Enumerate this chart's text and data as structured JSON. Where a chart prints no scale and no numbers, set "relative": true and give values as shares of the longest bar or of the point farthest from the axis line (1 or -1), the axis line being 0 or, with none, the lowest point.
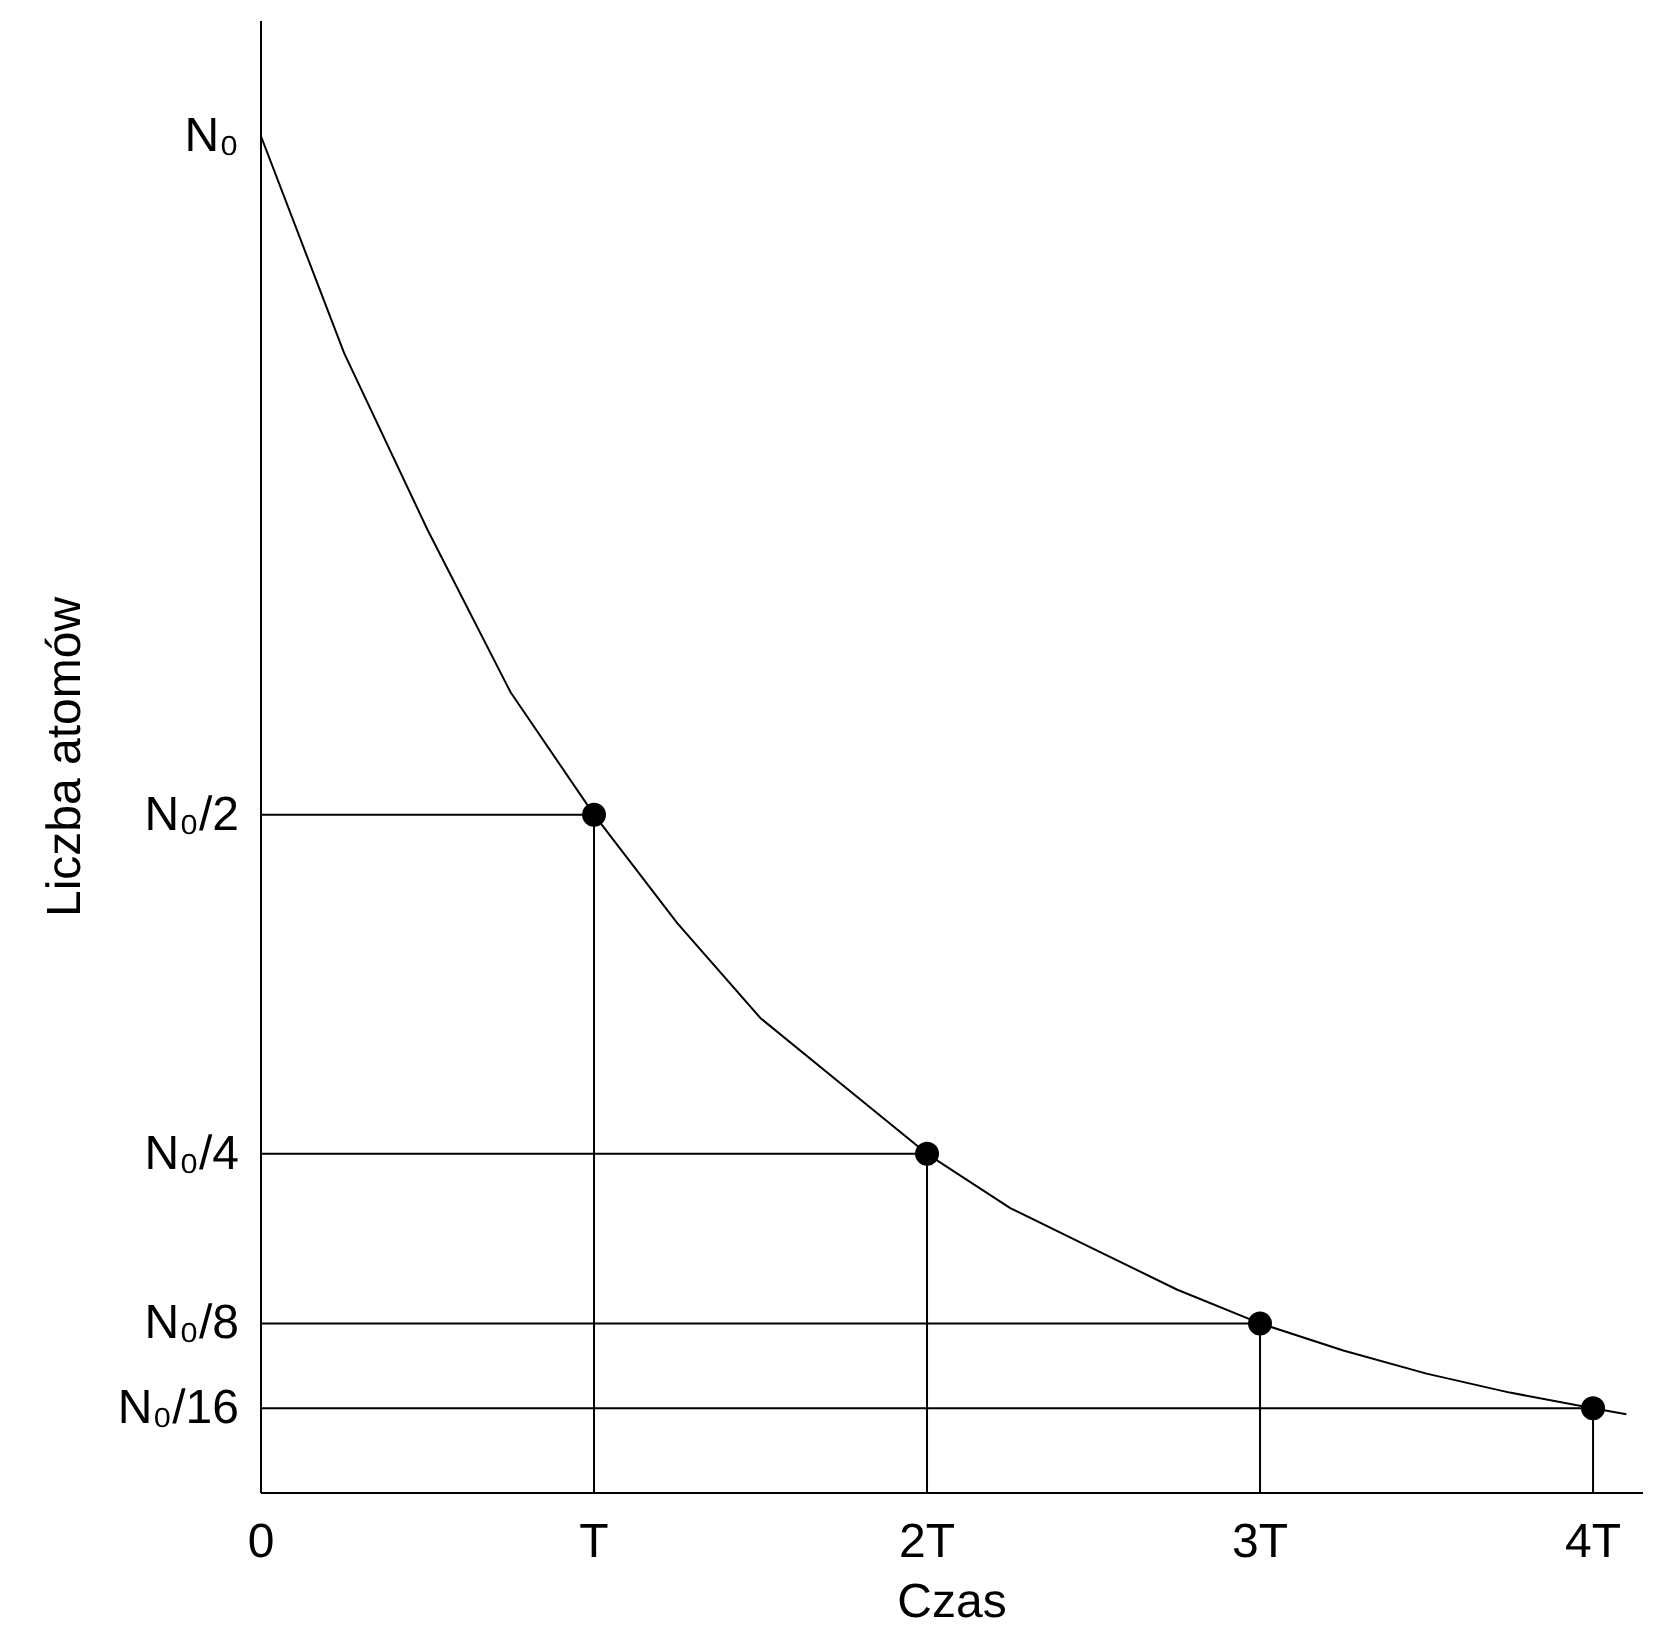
{
  "chart_data": {
    "type": "line",
    "relative": true,
    "xlabel": "Czas",
    "ylabel": "Liczba atomów",
    "xlim": [
      0,
      4.15
    ],
    "xticks": [
      0,
      {
        "value": 1,
        "label": "T"
      },
      {
        "value": 2,
        "label": "2T"
      },
      {
        "value": 3,
        "label": "3T"
      },
      {
        "value": 4,
        "label": "4T"
      }
    ],
    "grid": false,
    "series": [
      {
        "name": "N₀",
        "color": "#000000",
        "x": [
          0,
          0.25,
          0.5,
          0.75,
          1,
          1.25,
          1.5,
          1.75,
          2,
          2.25,
          2.5,
          2.75,
          3,
          3.25,
          3.5,
          3.75,
          4,
          4.1
        ],
        "values": [
          1,
          0.84,
          0.71,
          0.59,
          0.5,
          0.42,
          0.35,
          0.3,
          0.25,
          0.21,
          0.18,
          0.15,
          0.125,
          0.105,
          0.088,
          0.074,
          0.0625,
          0.058
        ]
      },
      {
        "name": "N₀/2",
        "color": "#000000",
        "x": [
          0,
          1,
          1
        ],
        "values": [
          0.5,
          0.5,
          0
        ]
      },
      {
        "name": "N₀/4",
        "color": "#000000",
        "x": [
          0,
          2,
          2
        ],
        "values": [
          0.25,
          0.25,
          0
        ]
      },
      {
        "name": "N₀/8",
        "color": "#000000",
        "x": [
          0,
          3,
          3
        ],
        "values": [
          0.125,
          0.125,
          0
        ]
      },
      {
        "name": "N₀/16",
        "color": "#000000",
        "x": [
          0,
          4,
          4
        ],
        "values": [
          0.0625,
          0.0625,
          0
        ]
      },
      {
        "type": "scatter",
        "marker": "circle",
        "color": "#000000",
        "x": [
          1,
          2,
          3,
          4
        ],
        "values": [
          0.5,
          0.25,
          0.125,
          0.0625
        ]
      }
    ]
  }
}
